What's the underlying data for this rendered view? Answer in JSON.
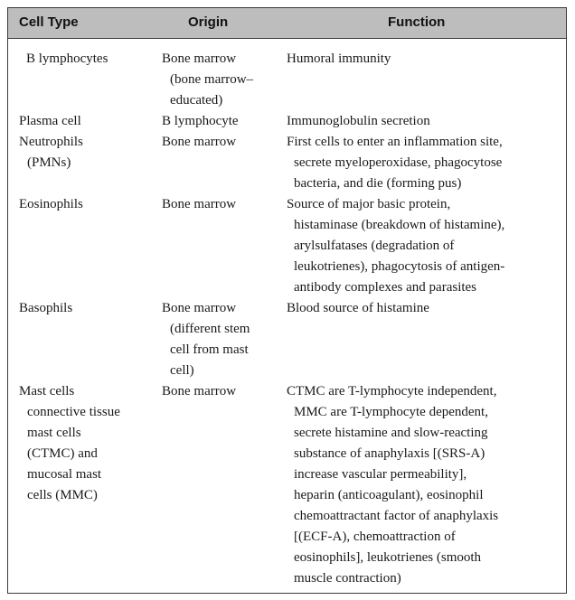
{
  "headers": {
    "cell_type": "Cell Type",
    "origin": "Origin",
    "function": "Function"
  },
  "rows": [
    {
      "cell_type": [
        "B lymphocytes"
      ],
      "origin": [
        "Bone marrow",
        "(bone marrow–",
        "educated)"
      ],
      "function": [
        "Humoral immunity"
      ]
    },
    {
      "cell_type": [
        "Plasma cell"
      ],
      "origin": [
        "B lymphocyte"
      ],
      "function": [
        "Immunoglobulin secretion"
      ]
    },
    {
      "cell_type": [
        "Neutrophils",
        "(PMNs)"
      ],
      "origin": [
        "Bone marrow"
      ],
      "function": [
        "First cells to enter an inflammation site,",
        "secrete myeloperoxidase, phagocytose",
        "bacteria, and die (forming pus)"
      ]
    },
    {
      "cell_type": [
        "Eosinophils"
      ],
      "origin": [
        "Bone marrow"
      ],
      "function": [
        "Source of major basic protein,",
        "histaminase (breakdown of histamine),",
        "arylsulfatases (degradation of",
        "leukotrienes), phagocytosis of antigen-",
        "antibody complexes and parasites"
      ]
    },
    {
      "cell_type": [
        "Basophils"
      ],
      "origin": [
        "Bone marrow",
        "(different stem",
        "cell from mast",
        "cell)"
      ],
      "function": [
        "Blood source of histamine"
      ]
    },
    {
      "cell_type": [
        "Mast cells",
        "connective tissue",
        "mast cells",
        "(CTMC) and",
        "mucosal mast",
        "cells (MMC)"
      ],
      "origin": [
        "Bone marrow"
      ],
      "function": [
        "CTMC are T-lymphocyte independent,",
        "MMC are T-lymphocyte dependent,",
        "secrete histamine and slow-reacting",
        "substance of anaphylaxis [(SRS-A)",
        "increase vascular permeability],",
        "heparin (anticoagulant), eosinophil",
        "chemoattractant factor of anaphylaxis",
        "[(ECF-A), chemoattraction of",
        "eosinophils], leukotrienes (smooth",
        "muscle contraction)"
      ]
    }
  ]
}
